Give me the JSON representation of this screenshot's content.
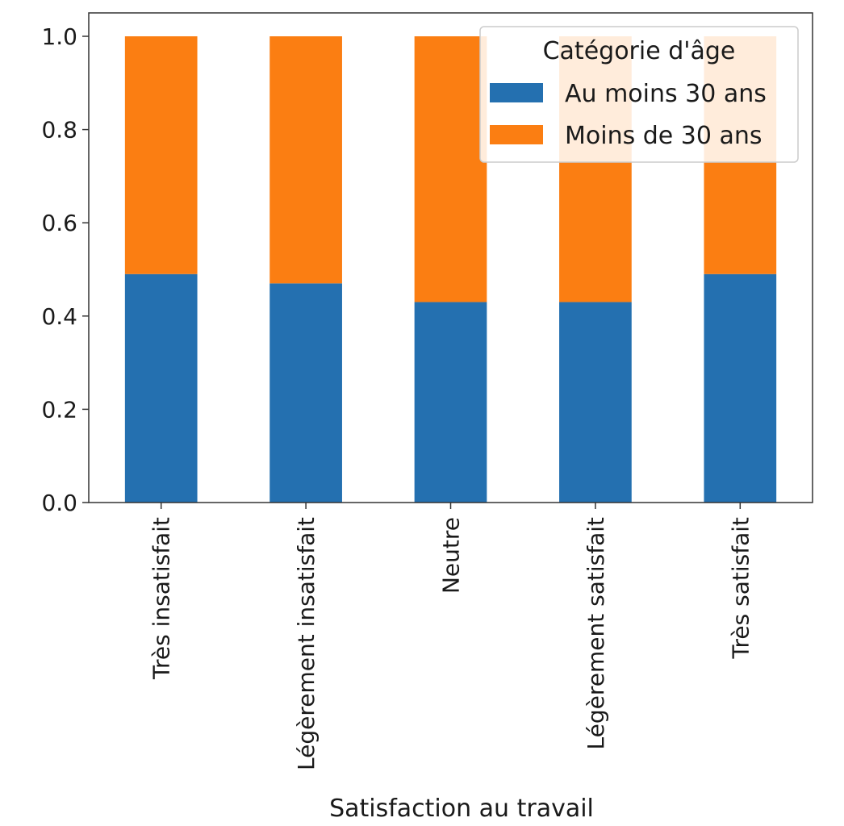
{
  "chart_data": {
    "type": "bar",
    "stacked": true,
    "title": "",
    "xlabel": "Satisfaction au travail",
    "ylabel": "",
    "ylim": [
      0,
      1.0
    ],
    "yticks": [
      "0.0",
      "0.2",
      "0.4",
      "0.6",
      "0.8",
      "1.0"
    ],
    "categories": [
      "Très insatisfait",
      "Légèrement insatisfait",
      "Neutre",
      "Légèrement satisfait",
      "Très satisfait"
    ],
    "series": [
      {
        "name": "Au moins 30 ans",
        "color": "#2470b0",
        "values": [
          0.49,
          0.47,
          0.43,
          0.43,
          0.49
        ]
      },
      {
        "name": "Moins de 30 ans",
        "color": "#fb7e12",
        "values": [
          0.51,
          0.53,
          0.57,
          0.57,
          0.51
        ]
      }
    ],
    "legend": {
      "title": "Catégorie d'âge",
      "position": "top-right"
    },
    "grid": false
  }
}
